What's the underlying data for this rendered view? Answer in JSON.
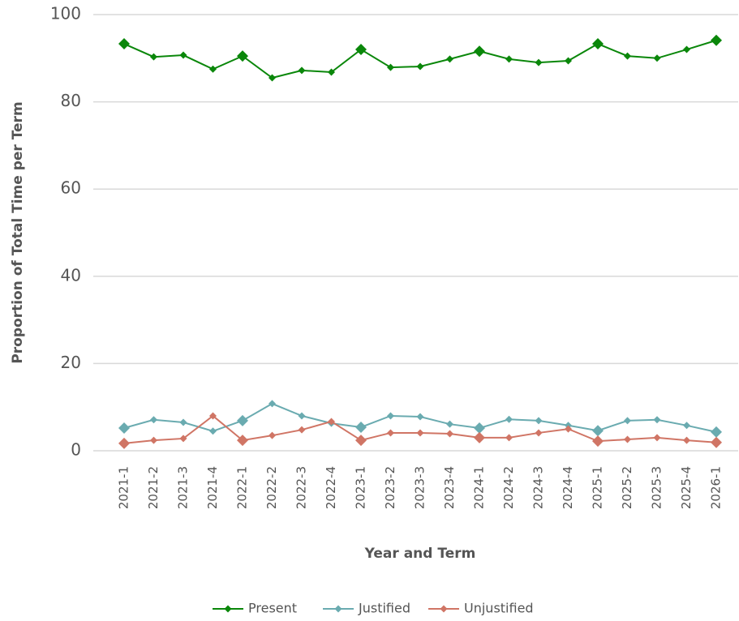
{
  "chart_data": {
    "type": "line",
    "x_label": "Year and Term",
    "y_label": "Proportion of Total Time per Term",
    "categories": [
      "2021-1",
      "2021-2",
      "2021-3",
      "2021-4",
      "2022-1",
      "2022-2",
      "2022-3",
      "2022-4",
      "2023-1",
      "2023-2",
      "2023-3",
      "2023-4",
      "2024-1",
      "2024-2",
      "2024-3",
      "2024-4",
      "2025-1",
      "2025-2",
      "2025-3",
      "2025-4",
      "2026-1"
    ],
    "series": [
      {
        "name": "Present",
        "color": "#0a870a",
        "values": [
          93.3,
          90.3,
          90.7,
          87.5,
          90.5,
          85.5,
          87.2,
          86.8,
          92.0,
          87.9,
          88.1,
          89.8,
          91.6,
          89.8,
          89.0,
          89.4,
          93.3,
          90.5,
          90.0,
          92.0,
          94.1
        ]
      },
      {
        "name": "Justified",
        "color": "#6aabb0",
        "values": [
          5.2,
          7.1,
          6.5,
          4.5,
          6.9,
          10.8,
          8.0,
          6.3,
          5.4,
          8.0,
          7.8,
          6.1,
          5.2,
          7.2,
          6.9,
          5.8,
          4.6,
          6.9,
          7.1,
          5.8,
          4.3
        ]
      },
      {
        "name": "Unjustified",
        "color": "#d07565",
        "values": [
          1.7,
          2.4,
          2.8,
          8.0,
          2.4,
          3.5,
          4.8,
          6.7,
          2.4,
          4.1,
          4.1,
          3.9,
          3.0,
          3.0,
          4.1,
          5.0,
          2.2,
          2.6,
          3.0,
          2.4,
          1.9
        ]
      }
    ],
    "ylim": [
      0,
      100
    ],
    "yticks": [
      0,
      20,
      40,
      60,
      80,
      100
    ],
    "grid": true,
    "legend": "bottom"
  }
}
